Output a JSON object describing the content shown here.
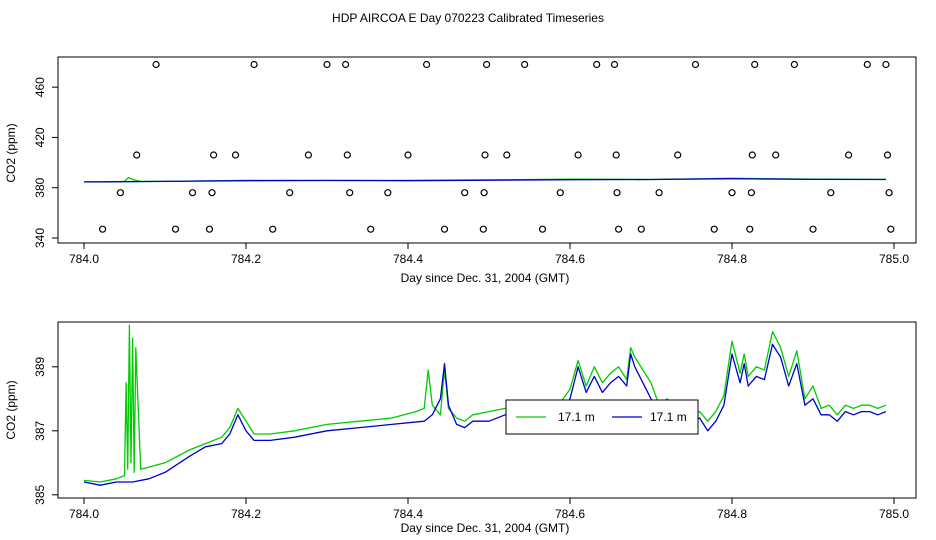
{
  "page": {
    "title": "HDP AIRCOA E  Day 070223  Calibrated Timeseries"
  },
  "colors": {
    "green": "#00cc00",
    "blue": "#0000cc",
    "axis": "#000000"
  },
  "chart_data": [
    {
      "type": "line",
      "id": "top",
      "title": "",
      "xlabel": "Day since Dec. 31, 2004 (GMT)",
      "ylabel": "CO2 (ppm)",
      "xlim": [
        784.0,
        785.0
      ],
      "ylim": [
        336,
        484
      ],
      "xticks": [
        784.0,
        784.2,
        784.4,
        784.6,
        784.8,
        785.0
      ],
      "xtick_labels": [
        "784.0",
        "784.2",
        "784.4",
        "784.6",
        "784.8",
        "785.0"
      ],
      "yticks": [
        340,
        380,
        420,
        460
      ],
      "ytick_labels": [
        "340",
        "380",
        "420",
        "460"
      ],
      "grid": false,
      "series": [
        {
          "color": "green",
          "x": [
            784.0,
            784.03,
            784.05,
            784.055,
            784.06,
            784.07,
            784.1,
            784.2,
            784.3,
            784.4,
            784.5,
            784.6,
            784.7,
            784.8,
            784.9,
            784.99
          ],
          "y": [
            384.5,
            384.5,
            385.0,
            388.0,
            386.5,
            385.0,
            385.0,
            385.8,
            385.8,
            385.8,
            386.2,
            386.8,
            386.5,
            387.5,
            386.8,
            386.6
          ]
        },
        {
          "color": "blue",
          "x": [
            784.0,
            784.05,
            784.1,
            784.2,
            784.3,
            784.4,
            784.5,
            784.6,
            784.7,
            784.8,
            784.9,
            784.99
          ],
          "y": [
            384.6,
            384.8,
            385.0,
            385.6,
            385.7,
            385.6,
            386.0,
            386.4,
            386.5,
            387.2,
            386.6,
            386.5
          ]
        }
      ],
      "scatter_points": {
        "marker": "open-circle",
        "x": [
          784.023,
          784.045,
          784.065,
          784.089,
          784.113,
          784.134,
          784.155,
          784.158,
          784.16,
          784.187,
          784.21,
          784.233,
          784.254,
          784.277,
          784.3,
          784.323,
          784.325,
          784.328,
          784.354,
          784.375,
          784.4,
          784.423,
          784.445,
          784.47,
          784.493,
          784.494,
          784.495,
          784.497,
          784.522,
          784.544,
          784.566,
          784.588,
          784.61,
          784.633,
          784.655,
          784.657,
          784.658,
          784.66,
          784.688,
          784.71,
          784.733,
          784.755,
          784.778,
          784.8,
          784.822,
          784.824,
          784.825,
          784.828,
          784.854,
          784.877,
          784.9,
          784.922,
          784.944,
          784.967,
          784.99,
          784.992,
          784.994,
          784.996
        ],
        "y": [
          347,
          376,
          406,
          478,
          347,
          376,
          347,
          376,
          406,
          406,
          478,
          347,
          376,
          406,
          478,
          478,
          406,
          376,
          347,
          376,
          406,
          478,
          347,
          376,
          347,
          376,
          406,
          478,
          406,
          478,
          347,
          376,
          406,
          478,
          478,
          406,
          376,
          347,
          347,
          376,
          406,
          478,
          347,
          376,
          347,
          376,
          406,
          478,
          406,
          478,
          347,
          376,
          406,
          478,
          478,
          406,
          376,
          347
        ]
      }
    },
    {
      "type": "line",
      "id": "bottom",
      "title": "",
      "xlabel": "Day since Dec. 31, 2004 (GMT)",
      "ylabel": "CO2 (ppm)",
      "xlim": [
        784.0,
        785.0
      ],
      "ylim": [
        384.9,
        390.4
      ],
      "xticks": [
        784.0,
        784.2,
        784.4,
        784.6,
        784.8,
        785.0
      ],
      "xtick_labels": [
        "784.0",
        "784.2",
        "784.4",
        "784.6",
        "784.8",
        "785.0"
      ],
      "yticks": [
        385,
        387,
        389
      ],
      "ytick_labels": [
        "385",
        "387",
        "389"
      ],
      "grid": false,
      "legend": {
        "position": "center-right",
        "entries": [
          {
            "color": "green",
            "label": "17.1 m"
          },
          {
            "color": "blue",
            "label": "17.1 m"
          }
        ]
      },
      "series": [
        {
          "color": "green",
          "x": [
            784.0,
            784.02,
            784.04,
            784.05,
            784.052,
            784.054,
            784.056,
            784.058,
            784.06,
            784.062,
            784.064,
            784.07,
            784.1,
            784.13,
            784.15,
            784.17,
            784.18,
            784.19,
            784.2,
            784.21,
            784.23,
            784.26,
            784.3,
            784.34,
            784.38,
            784.41,
            784.42,
            784.425,
            784.43,
            784.44,
            784.445,
            784.45,
            784.46,
            784.47,
            784.48,
            784.5,
            784.52,
            784.55,
            784.58,
            784.6,
            784.61,
            784.62,
            784.63,
            784.64,
            784.65,
            784.66,
            784.67,
            784.675,
            784.68,
            784.69,
            784.7,
            784.71,
            784.72,
            784.73,
            784.74,
            784.75,
            784.76,
            784.77,
            784.78,
            784.79,
            784.8,
            784.81,
            784.815,
            784.82,
            784.83,
            784.84,
            784.85,
            784.86,
            784.87,
            784.88,
            784.89,
            784.9,
            784.91,
            784.92,
            784.93,
            784.94,
            784.95,
            784.96,
            784.97,
            784.98,
            784.99
          ],
          "y": [
            385.45,
            385.4,
            385.5,
            385.6,
            388.5,
            385.8,
            390.3,
            386.0,
            389.9,
            385.7,
            389.6,
            385.8,
            386.0,
            386.4,
            386.6,
            386.8,
            387.1,
            387.7,
            387.3,
            386.9,
            386.9,
            387.0,
            387.2,
            387.3,
            387.4,
            387.6,
            387.7,
            388.9,
            387.8,
            387.5,
            388.9,
            387.7,
            387.4,
            387.3,
            387.5,
            387.6,
            387.7,
            387.5,
            387.6,
            388.3,
            389.2,
            388.4,
            389.0,
            388.5,
            388.8,
            389.0,
            388.6,
            389.6,
            389.3,
            388.9,
            388.5,
            387.8,
            388.0,
            387.7,
            387.4,
            387.5,
            387.6,
            387.3,
            387.6,
            388.1,
            389.8,
            388.8,
            389.4,
            388.7,
            389.0,
            388.9,
            390.1,
            389.6,
            388.7,
            389.5,
            388.0,
            388.4,
            387.7,
            387.8,
            387.5,
            387.8,
            387.7,
            387.8,
            387.8,
            387.7,
            387.8
          ]
        },
        {
          "color": "blue",
          "x": [
            784.0,
            784.02,
            784.04,
            784.06,
            784.08,
            784.1,
            784.13,
            784.15,
            784.17,
            784.18,
            784.19,
            784.2,
            784.21,
            784.23,
            784.26,
            784.3,
            784.34,
            784.38,
            784.42,
            784.43,
            784.44,
            784.445,
            784.45,
            784.46,
            784.47,
            784.48,
            784.5,
            784.52,
            784.55,
            784.58,
            784.6,
            784.61,
            784.62,
            784.63,
            784.64,
            784.65,
            784.66,
            784.67,
            784.675,
            784.68,
            784.69,
            784.7,
            784.71,
            784.72,
            784.73,
            784.74,
            784.75,
            784.76,
            784.77,
            784.78,
            784.79,
            784.8,
            784.81,
            784.815,
            784.82,
            784.83,
            784.84,
            784.85,
            784.86,
            784.87,
            784.88,
            784.89,
            784.9,
            784.91,
            784.92,
            784.93,
            784.94,
            784.95,
            784.96,
            784.97,
            784.98,
            784.99
          ],
          "y": [
            385.4,
            385.3,
            385.4,
            385.4,
            385.5,
            385.7,
            386.2,
            386.5,
            386.6,
            386.9,
            387.5,
            387.0,
            386.7,
            386.7,
            386.8,
            387.0,
            387.1,
            387.2,
            387.3,
            387.5,
            388.0,
            389.1,
            387.8,
            387.2,
            387.1,
            387.3,
            387.3,
            387.5,
            387.3,
            387.3,
            388.0,
            389.0,
            388.2,
            388.7,
            388.2,
            388.5,
            388.7,
            388.4,
            389.4,
            389.0,
            388.5,
            388.0,
            387.4,
            387.7,
            387.4,
            387.2,
            387.3,
            387.4,
            387.0,
            387.3,
            387.8,
            389.4,
            388.5,
            389.1,
            388.4,
            388.7,
            388.6,
            389.7,
            389.3,
            388.4,
            389.1,
            387.8,
            388.0,
            387.5,
            387.5,
            387.3,
            387.6,
            387.5,
            387.6,
            387.6,
            387.5,
            387.6
          ]
        }
      ]
    }
  ]
}
